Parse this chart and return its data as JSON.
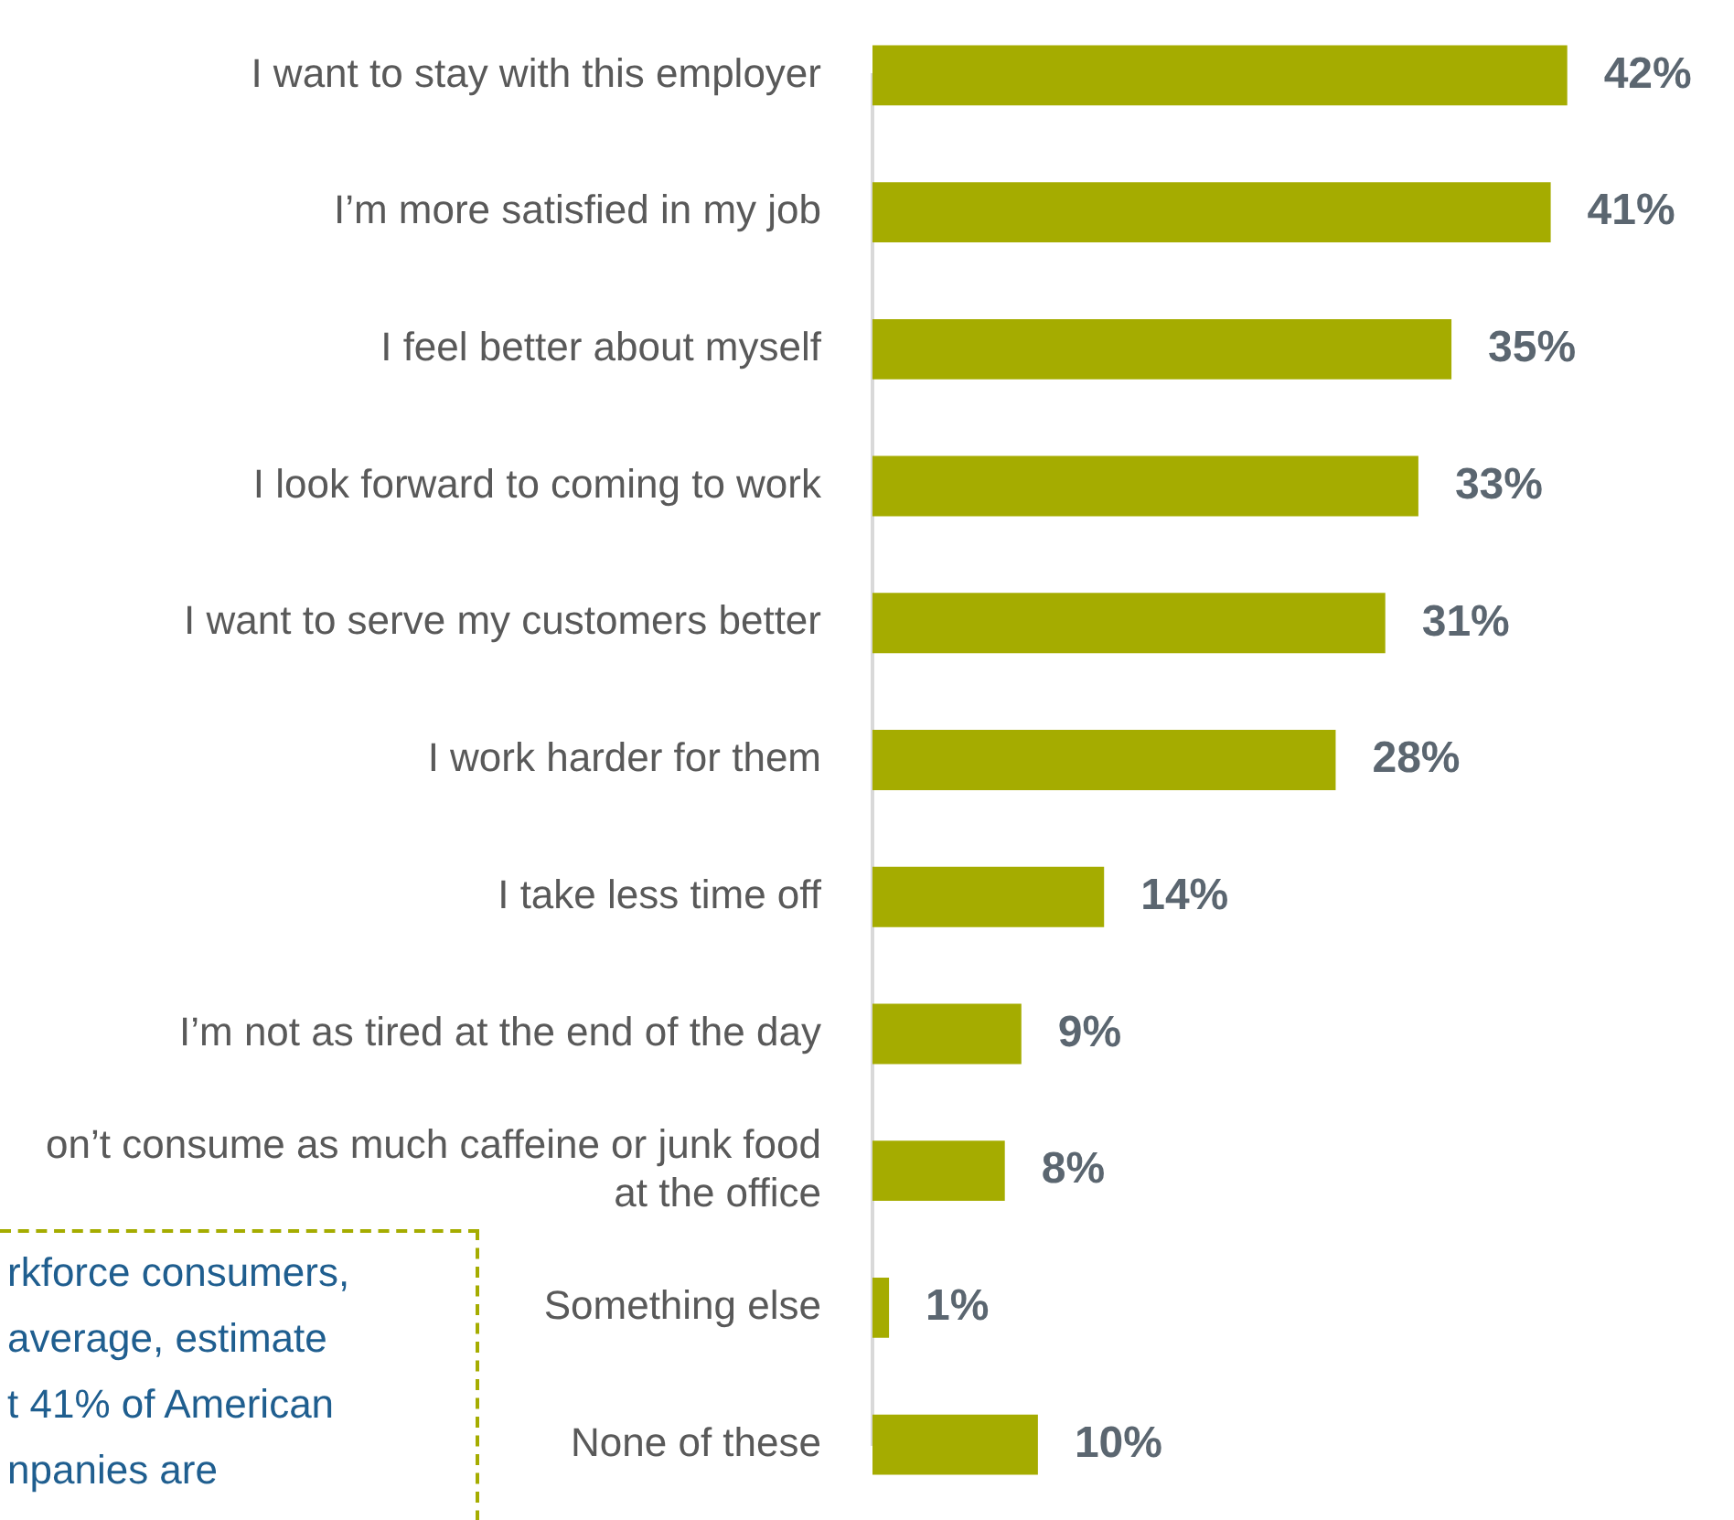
{
  "chart_data": {
    "type": "bar",
    "orientation": "horizontal",
    "categories": [
      "I want to stay with this employer",
      "I’m more satisfied in my job",
      "I feel better about myself",
      "I look forward to coming to work",
      "I want to serve my customers better",
      "I work harder for them",
      "I take less time off",
      "I’m not as tired at the end of the day",
      "on’t consume as much caffeine or junk food at the office",
      "Something else",
      "None of these"
    ],
    "values": [
      42,
      41,
      35,
      33,
      31,
      28,
      14,
      9,
      8,
      1,
      10
    ],
    "value_labels": [
      "42%",
      "41%",
      "35%",
      "33%",
      "31%",
      "28%",
      "14%",
      "9%",
      "8%",
      "1%",
      "10%"
    ],
    "color": "#a5ac00",
    "tick_labels": "y",
    "grid": false,
    "legend": false,
    "annotations": [
      "rkforce consumers,\naverage, estimate\nt 41% of American\nnpanies are"
    ]
  }
}
